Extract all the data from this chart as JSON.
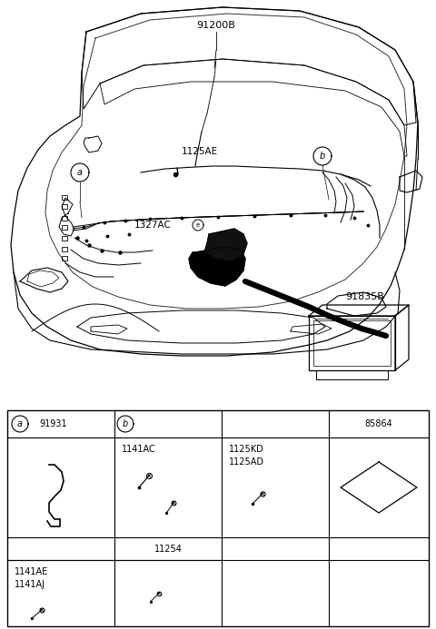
{
  "bg_color": "#ffffff",
  "line_color": "#000000",
  "text_color": "#000000",
  "gray_color": "#888888",
  "light_gray": "#cccccc",
  "fig_width": 4.8,
  "fig_height": 6.93,
  "dpi": 100,
  "label_91200B": "91200B",
  "label_91835B": "91835B",
  "label_1125AE": "1125AE",
  "label_1327AC": "1327AC",
  "label_a": "a",
  "label_b": "b",
  "table_col0_hdr": "91931",
  "table_col3_hdr": "85864",
  "table_row1_col1": "1141AC",
  "table_row1_col2": "1125KD\n1125AD",
  "table_row2_col1": "11254",
  "table_row3_col0_lbl": "1141AE\n1141AJ",
  "font_size_diag": 7.5,
  "font_size_tbl": 7.0
}
